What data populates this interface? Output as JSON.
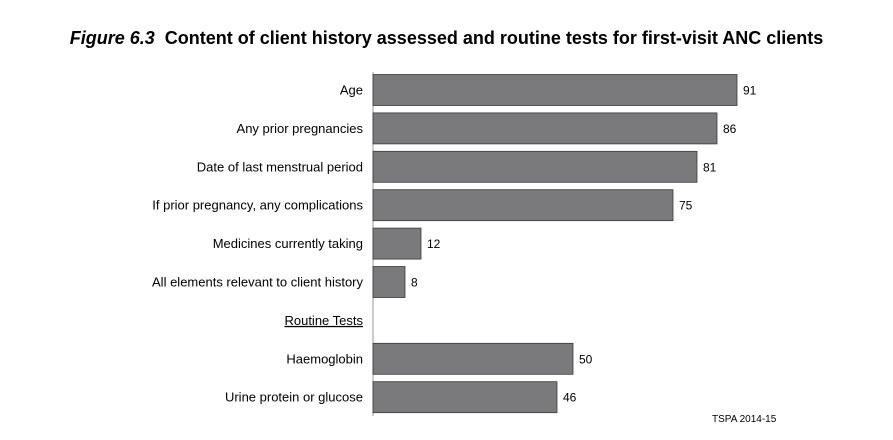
{
  "title": {
    "figure": "Figure 6.3",
    "text": "Content of client history assessed and routine tests for first-visit ANC clients"
  },
  "source": "TSPA 2014-15",
  "chart_data": {
    "type": "bar",
    "orientation": "horizontal",
    "bar_color": "#7a7a7c",
    "bar_border": "#3a3a3a",
    "xlim": [
      0,
      100
    ],
    "rows": [
      {
        "label": "Age",
        "value": 91
      },
      {
        "label": "Any prior pregnancies",
        "value": 86
      },
      {
        "label": "Date of last menstrual period",
        "value": 81
      },
      {
        "label": "If prior pregnancy, any complications",
        "value": 75
      },
      {
        "label": "Medicines currently taking",
        "value": 12
      },
      {
        "label": "All elements relevant to client history",
        "value": 8
      },
      {
        "label": "Routine Tests",
        "section_header": true
      },
      {
        "label": "Haemoglobin",
        "value": 50
      },
      {
        "label": "Urine protein or glucose",
        "value": 46
      }
    ]
  }
}
